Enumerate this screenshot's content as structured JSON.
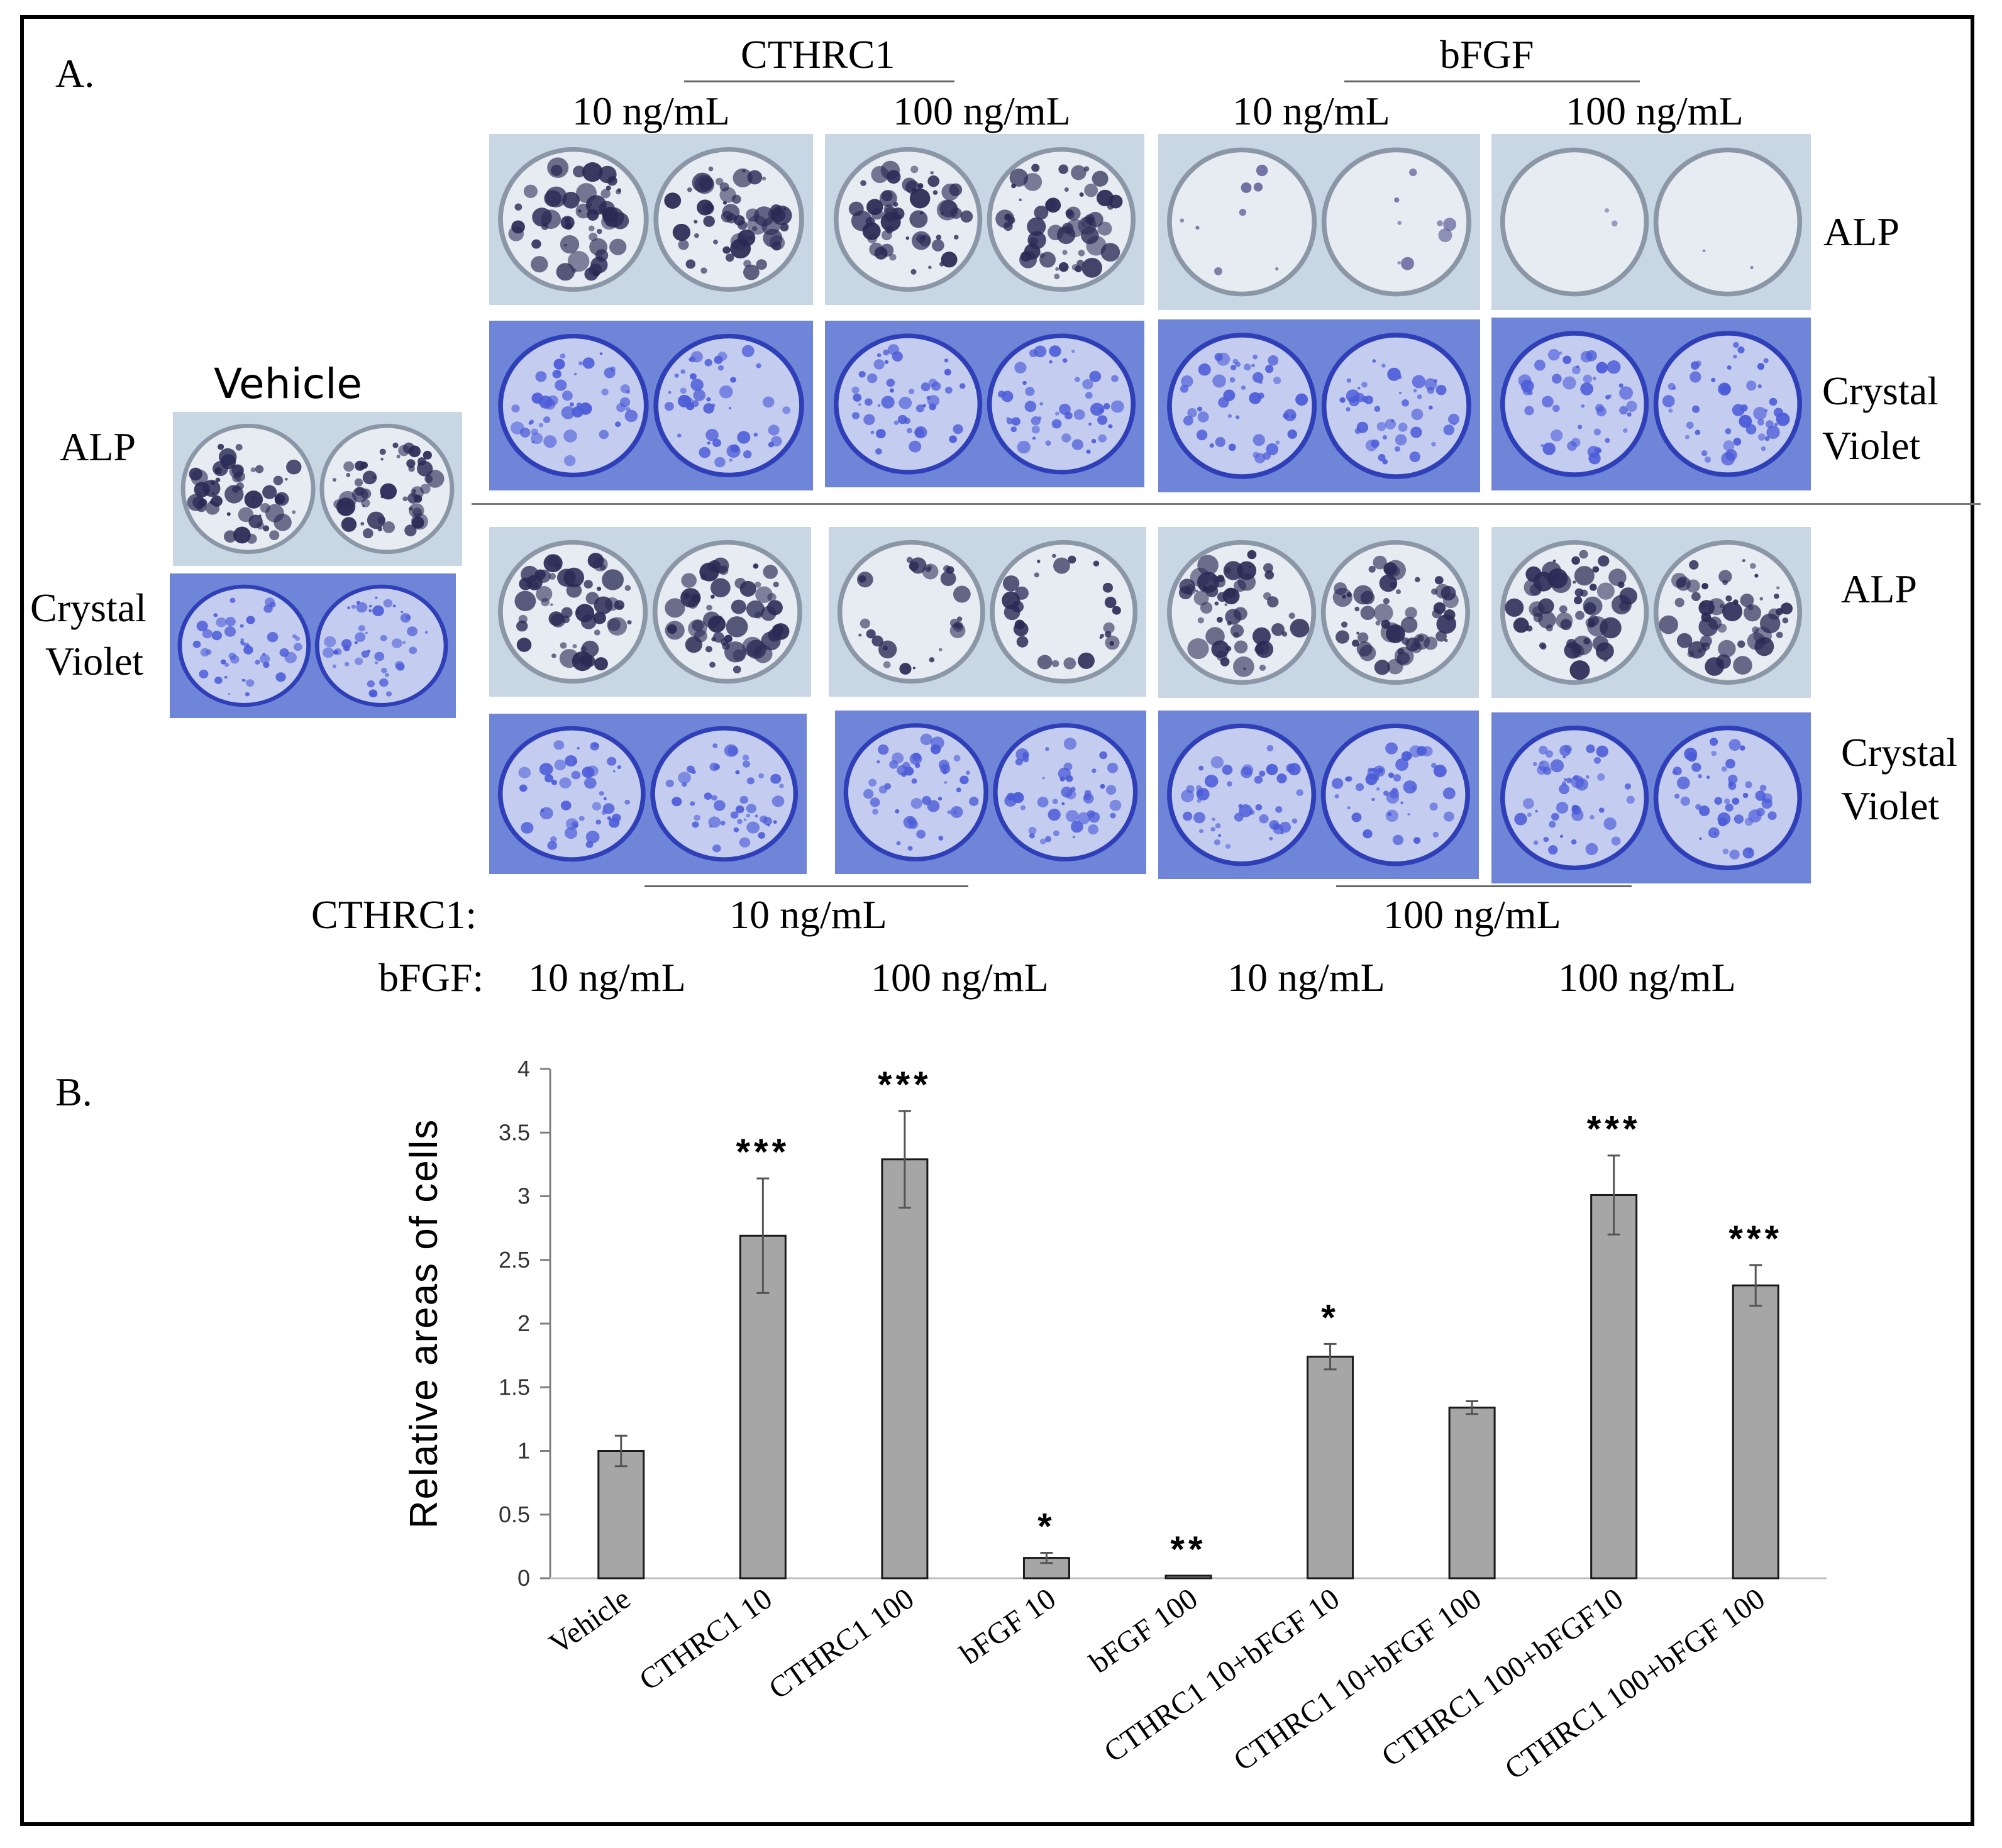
{
  "panel_a": {
    "label": "A.",
    "top_group_cthrc1": "CTHRC1",
    "top_group_bfgf": "bFGF",
    "top_conc": [
      "10 ng/mL",
      "100 ng/mL",
      "10 ng/mL",
      "100 ng/mL"
    ],
    "vehicle_title": "Vehicle",
    "stain_alp": "ALP",
    "stain_cv_line1": "Crystal",
    "stain_cv_line2": "Violet",
    "bottom_cthrc1_label": "CTHRC1:",
    "bottom_bfgf_label": "bFGF:",
    "bottom_cthrc1_conc": [
      "10 ng/mL",
      "100 ng/mL"
    ],
    "bottom_bfgf_conc": [
      "10 ng/mL",
      "100 ng/mL",
      "10 ng/mL",
      "100 ng/mL"
    ],
    "colors": {
      "alp_stain": "#2a2a55",
      "cv_stain": "#4b5bd8",
      "plate_bg": "#c9d6e4",
      "cv_bg": "#6f86d8"
    }
  },
  "panel_b": {
    "label": "B."
  },
  "chart_data": {
    "type": "bar",
    "title": "",
    "xlabel": "",
    "ylabel": "Relative areas of cells",
    "ylim": [
      0,
      4
    ],
    "yticks": [
      "0",
      "0.5",
      "1",
      "1.5",
      "2",
      "2.5",
      "3",
      "3.5",
      "4"
    ],
    "grid": false,
    "categories": [
      "Vehicle",
      "CTHRC1 10",
      "CTHRC1 100",
      "bFGF 10",
      "bFGF 100",
      "CTHRC1 10+bFGF 10",
      "CTHRC1 10+bFGF 100",
      "CTHRC1 100+bFGF10",
      "CTHRC1 100+bFGF 100"
    ],
    "values": [
      1.0,
      2.69,
      3.29,
      0.16,
      0.02,
      1.74,
      1.34,
      3.01,
      2.3
    ],
    "errors": [
      0.12,
      0.45,
      0.38,
      0.04,
      0.0,
      0.1,
      0.05,
      0.31,
      0.16
    ],
    "significance": [
      "",
      "***",
      "***",
      "*",
      "**",
      "*",
      "",
      "***",
      "***"
    ],
    "bar_color": "#a6a6a6"
  }
}
